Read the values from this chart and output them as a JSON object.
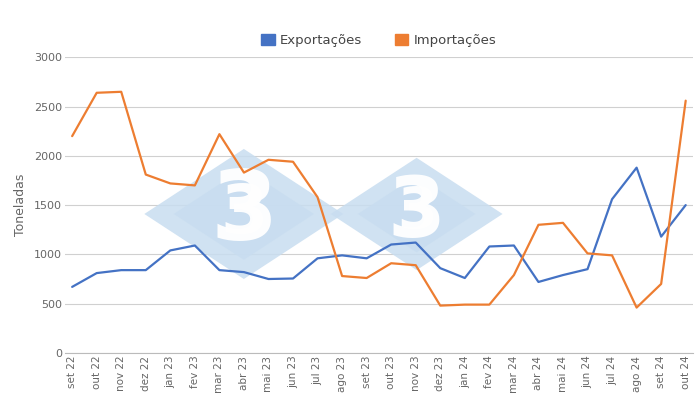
{
  "x_labels": [
    "set 22",
    "out 22",
    "nov 22",
    "dez 22",
    "jan 23",
    "fev 23",
    "mar 23",
    "abr 23",
    "mai 23",
    "jun 23",
    "jul 23",
    "ago 23",
    "set 23",
    "out 23",
    "nov 23",
    "dez 23",
    "jan 24",
    "fev 24",
    "mar 24",
    "abr 24",
    "mai 24",
    "jun 24",
    "jul 24",
    "ago 24",
    "set 24",
    "out 24"
  ],
  "exportacoes": [
    670,
    810,
    840,
    840,
    1040,
    1090,
    840,
    820,
    750,
    755,
    960,
    990,
    960,
    1100,
    1120,
    860,
    760,
    1080,
    1090,
    720,
    790,
    850,
    1560,
    1880,
    1180,
    1500
  ],
  "importacoes": [
    2200,
    2640,
    2650,
    1810,
    1720,
    1700,
    2220,
    1830,
    1960,
    1940,
    1580,
    780,
    760,
    910,
    890,
    480,
    490,
    490,
    790,
    1300,
    1320,
    1010,
    990,
    460,
    700,
    2560
  ],
  "export_color": "#4472c4",
  "import_color": "#ed7d31",
  "ylabel": "Toneladas",
  "ylim": [
    0,
    3000
  ],
  "yticks": [
    0,
    500,
    1000,
    1500,
    2000,
    2500,
    3000
  ],
  "legend_export": "Exportações",
  "legend_import": "Importações",
  "bg_color": "#ffffff",
  "grid_color": "#d0d0d0",
  "watermark_color": "#c8ddf0",
  "line_width": 1.6,
  "tick_fontsize": 7.5,
  "ylabel_fontsize": 9
}
